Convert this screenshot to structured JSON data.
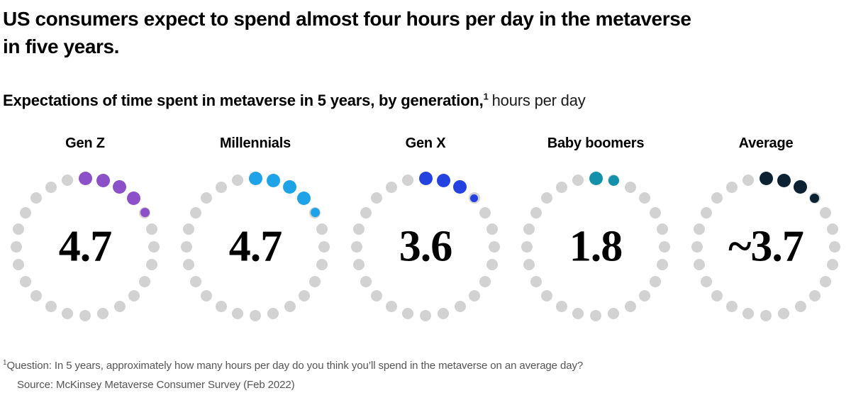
{
  "header": {
    "title_line1": "US consumers expect to spend almost four hours per day in the metaverse",
    "title_line2": "in five years.",
    "subtitle_bold": "Expectations of time spent in metaverse in 5 years, by generation,",
    "subtitle_superscript": "1",
    "subtitle_regular": "hours per day"
  },
  "chart_data": {
    "type": "pie",
    "variant": "radial-dot-ring",
    "layout_hint": "5 rings side by side; each ring has 24 gray dots (24 hours of a day) arranged clockwise from 12 o'clock; the first floor(value) dots are filled with the series color, plus one smaller colored dot sized by the fractional hour; value printed in center in bold serif",
    "categories": [
      "Gen Z",
      "Millennials",
      "Gen X",
      "Baby boomers",
      "Average"
    ],
    "values": [
      4.7,
      4.7,
      3.6,
      1.8,
      3.7
    ],
    "value_labels": [
      "4.7",
      "4.7",
      "3.6",
      "1.8",
      "~3.7"
    ],
    "units": "hours per day",
    "dots_per_ring": 24,
    "series_colors": [
      "#8c50c8",
      "#1fa3e8",
      "#2342e0",
      "#1390aa",
      "#0c2233"
    ],
    "empty_dot_color": "#d2d2d2"
  },
  "footnotes": {
    "note_superscript": "1",
    "note_text": "Question: In 5 years, approximately how many hours per day do you think you’ll spend in the metaverse on an average day?",
    "source_text": "Source: McKinsey Metaverse Consumer Survey (Feb 2022)"
  }
}
